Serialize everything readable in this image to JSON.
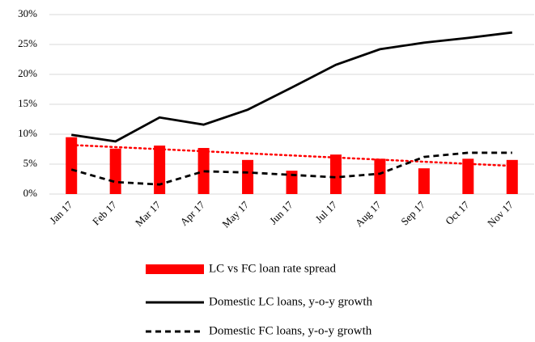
{
  "chart_data": {
    "type": "combo",
    "categories": [
      "Jan 17",
      "Feb 17",
      "Mar 17",
      "Apr 17",
      "May 17",
      "Jun 17",
      "Jul 17",
      "Aug 17",
      "Sep 17",
      "Oct 17",
      "Nov 17"
    ],
    "series": [
      {
        "name": "LC vs FC loan rate spread",
        "type": "bar",
        "color": "#ff0000",
        "values": [
          9.5,
          7.6,
          8.1,
          7.7,
          5.7,
          3.9,
          6.6,
          5.9,
          4.3,
          5.9,
          5.7
        ]
      },
      {
        "name": "Domestic LC loans, y-o-y growth",
        "type": "line",
        "color": "#000000",
        "dash": false,
        "values": [
          9.9,
          8.8,
          12.8,
          11.6,
          14.1,
          17.8,
          21.6,
          24.2,
          25.3,
          26.1,
          27.0
        ]
      },
      {
        "name": "Domestic FC loans, y-o-y growth",
        "type": "line",
        "color": "#000000",
        "dash": true,
        "values": [
          4.1,
          2.0,
          1.6,
          3.8,
          3.6,
          3.2,
          2.8,
          3.4,
          6.2,
          6.9,
          6.9
        ]
      }
    ],
    "trendline": {
      "color": "#ff0000",
      "values": [
        8.2,
        4.7
      ]
    },
    "ylim": [
      0,
      30
    ],
    "yticks": [
      {
        "value": 0,
        "label": "0%"
      },
      {
        "value": 5,
        "label": "5%"
      },
      {
        "value": 10,
        "label": "10%"
      },
      {
        "value": 15,
        "label": "15%"
      },
      {
        "value": 20,
        "label": "20%"
      },
      {
        "value": 25,
        "label": "25%"
      },
      {
        "value": 30,
        "label": "30%"
      }
    ],
    "grid": true,
    "legend": "bottom"
  }
}
